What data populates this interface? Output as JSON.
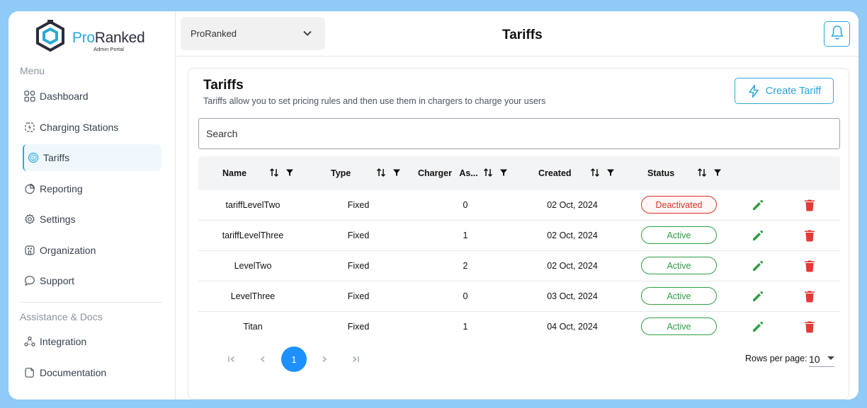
{
  "brand": {
    "name_part1": "Pro",
    "name_part2": "Ranked",
    "subtitle": "Admin Portal",
    "accent_color": "#2aa9d6"
  },
  "sidebar": {
    "menu_title": "Menu",
    "items": [
      {
        "label": "Dashboard",
        "icon": "dashboard-grid-icon"
      },
      {
        "label": "Charging Stations",
        "icon": "charging-station-icon"
      },
      {
        "label": "Tariffs",
        "icon": "tariff-coin-icon",
        "active": true
      },
      {
        "label": "Reporting",
        "icon": "pie-chart-icon"
      },
      {
        "label": "Settings",
        "icon": "gear-icon"
      },
      {
        "label": "Organization",
        "icon": "building-icon"
      },
      {
        "label": "Support",
        "icon": "chat-bubble-icon"
      }
    ],
    "docs_title": "Assistance & Docs",
    "docs_items": [
      {
        "label": "Integration",
        "icon": "integration-nodes-icon"
      },
      {
        "label": "Documentation",
        "icon": "document-icon"
      }
    ]
  },
  "header": {
    "org_selected": "ProRanked",
    "title": "Tariffs",
    "bell_icon": "bell-icon"
  },
  "content": {
    "title": "Tariffs",
    "subtitle": "Tariffs allow you to set pricing rules and then use them in chargers to charge your users",
    "create_button": "Create Tariff",
    "search_placeholder": "Search"
  },
  "table": {
    "columns": [
      "Name",
      "Type",
      "Charger",
      "As...",
      "Created",
      "Status"
    ],
    "rows": [
      {
        "name": "tariffLevelTwo",
        "type": "Fixed",
        "assigned": "0",
        "created": "02 Oct, 2024",
        "status": "Deactivated"
      },
      {
        "name": "tariffLevelThree",
        "type": "Fixed",
        "assigned": "1",
        "created": "02 Oct, 2024",
        "status": "Active"
      },
      {
        "name": "LevelTwo",
        "type": "Fixed",
        "assigned": "2",
        "created": "02 Oct, 2024",
        "status": "Active"
      },
      {
        "name": "LevelThree",
        "type": "Fixed",
        "assigned": "0",
        "created": "03 Oct, 2024",
        "status": "Active"
      },
      {
        "name": "Titan",
        "type": "Fixed",
        "assigned": "1",
        "created": "04 Oct, 2024",
        "status": "Active"
      }
    ]
  },
  "pagination": {
    "current_page": "1",
    "rows_per_page_label": "Rows per page:",
    "rows_per_page": "10"
  },
  "colors": {
    "active": "#2e9e44",
    "deactivated": "#d93025",
    "edit": "#2e9e44",
    "delete": "#e53935",
    "page_active": "#1e90ff"
  }
}
